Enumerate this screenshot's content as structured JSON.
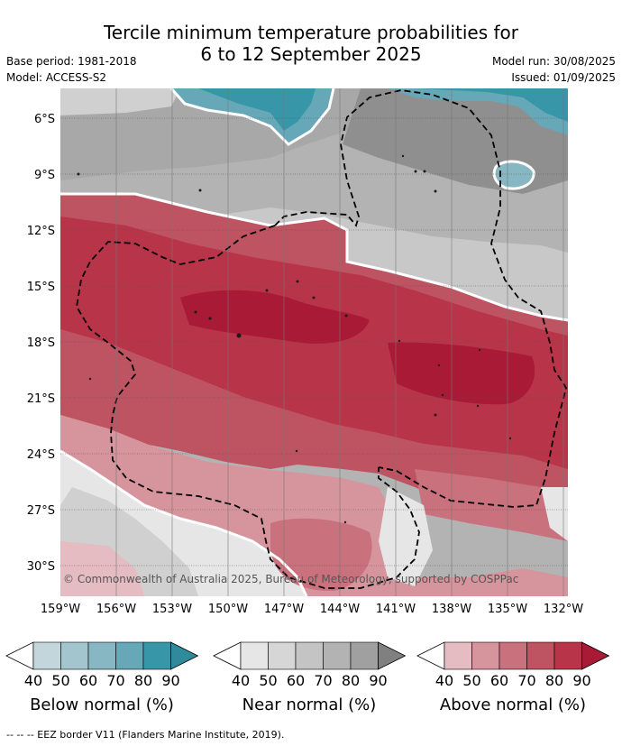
{
  "header": {
    "title_line1": "Tercile minimum temperature probabilities for",
    "title_line2": "6 to 12 September 2025",
    "base_period": "Base period: 1981-2018",
    "model": "Model: ACCESS-S2",
    "model_run": "Model run: 30/08/2025",
    "issued": "Issued: 01/09/2025"
  },
  "map": {
    "lat_labels": [
      "6°S",
      "9°S",
      "12°S",
      "15°S",
      "18°S",
      "21°S",
      "24°S",
      "27°S",
      "30°S"
    ],
    "lon_labels": [
      "159°W",
      "156°W",
      "153°W",
      "150°W",
      "147°W",
      "144°W",
      "141°W",
      "138°W",
      "135°W",
      "132°W"
    ],
    "copyright": "© Commonwealth of Australia 2025, Bureau of Meteorology, supported by COSPPac",
    "colors": {
      "below": [
        "#c3d6dc",
        "#a3c5cd",
        "#86b7c2",
        "#66a8b7",
        "#3796a8"
      ],
      "near": [
        "#e6e6e6",
        "#d6d6d6",
        "#c4c4c4",
        "#b3b3b3",
        "#a0a0a0"
      ],
      "above": [
        "#e5bcc2",
        "#d6959d",
        "#c9717d",
        "#be5362",
        "#b83448",
        "#a81a36"
      ],
      "land": "#1a1a1a"
    }
  },
  "colorbars": [
    {
      "title": "Below normal (%)",
      "ticks": [
        "40",
        "50",
        "60",
        "70",
        "80",
        "90"
      ],
      "colors": [
        "#c3d6dc",
        "#a3c5cd",
        "#86b7c2",
        "#66a8b7",
        "#3796a8"
      ],
      "arrow_color": "#2f8a9c"
    },
    {
      "title": "Near normal (%)",
      "ticks": [
        "40",
        "50",
        "60",
        "70",
        "80",
        "90"
      ],
      "colors": [
        "#e6e6e6",
        "#d6d6d6",
        "#c4c4c4",
        "#b3b3b3",
        "#a0a0a0"
      ],
      "arrow_color": "#808080"
    },
    {
      "title": "Above normal (%)",
      "ticks": [
        "40",
        "50",
        "60",
        "70",
        "80",
        "90"
      ],
      "colors": [
        "#e5bcc2",
        "#d6959d",
        "#c9717d",
        "#be5362",
        "#b83448"
      ],
      "arrow_color": "#a81a36"
    }
  ],
  "footnote": "-- -- -- EEZ border V11 (Flanders Marine Institute, 2019)."
}
